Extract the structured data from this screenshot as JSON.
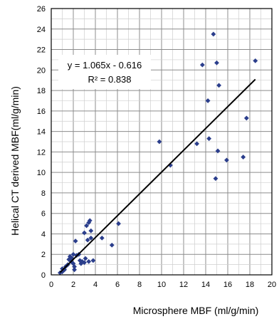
{
  "chart_data": {
    "type": "scatter",
    "title": "",
    "xlabel": "Microsphere MBF (ml/g/min)",
    "ylabel": "Helical CT derived MBF(ml/g/min)",
    "xlim": [
      0,
      20
    ],
    "ylim": [
      0,
      26
    ],
    "x_ticks": [
      "0",
      "2",
      "4",
      "6",
      "8",
      "10",
      "12",
      "14",
      "16",
      "18",
      "20"
    ],
    "y_ticks": [
      "0",
      "2",
      "4",
      "6",
      "8",
      "10",
      "12",
      "14",
      "16",
      "18",
      "20",
      "22",
      "24",
      "26"
    ],
    "grid": true,
    "marker_color": "#2b3e8c",
    "trendline": {
      "slope": 1.065,
      "intercept": -0.616,
      "x_start": 0.8,
      "x_end": 18.5,
      "color": "#000000"
    },
    "annotation": {
      "equation": "y = 1.065x - 0.616",
      "r_squared": "R² = 0.838"
    },
    "points": [
      {
        "x": 0.8,
        "y": 0.2
      },
      {
        "x": 1.0,
        "y": 0.3
      },
      {
        "x": 1.0,
        "y": 0.6
      },
      {
        "x": 1.2,
        "y": 0.5
      },
      {
        "x": 1.3,
        "y": 0.8
      },
      {
        "x": 1.5,
        "y": 1.0
      },
      {
        "x": 1.6,
        "y": 1.5
      },
      {
        "x": 1.7,
        "y": 1.8
      },
      {
        "x": 1.8,
        "y": 1.3
      },
      {
        "x": 1.9,
        "y": 1.6
      },
      {
        "x": 2.0,
        "y": 2.0
      },
      {
        "x": 2.0,
        "y": 1.1
      },
      {
        "x": 2.1,
        "y": 0.5
      },
      {
        "x": 2.1,
        "y": 0.8
      },
      {
        "x": 2.2,
        "y": 3.3
      },
      {
        "x": 2.3,
        "y": 1.9
      },
      {
        "x": 2.5,
        "y": 2.0
      },
      {
        "x": 2.6,
        "y": 1.4
      },
      {
        "x": 2.7,
        "y": 1.1
      },
      {
        "x": 2.8,
        "y": 1.3
      },
      {
        "x": 3.0,
        "y": 4.1
      },
      {
        "x": 3.0,
        "y": 1.2
      },
      {
        "x": 3.1,
        "y": 1.6
      },
      {
        "x": 3.2,
        "y": 4.8
      },
      {
        "x": 3.3,
        "y": 3.4
      },
      {
        "x": 3.4,
        "y": 1.3
      },
      {
        "x": 3.4,
        "y": 5.1
      },
      {
        "x": 3.5,
        "y": 5.3
      },
      {
        "x": 3.6,
        "y": 4.3
      },
      {
        "x": 3.6,
        "y": 3.6
      },
      {
        "x": 3.8,
        "y": 1.4
      },
      {
        "x": 4.6,
        "y": 3.6
      },
      {
        "x": 5.5,
        "y": 2.9
      },
      {
        "x": 6.1,
        "y": 5.0
      },
      {
        "x": 9.8,
        "y": 13.0
      },
      {
        "x": 10.8,
        "y": 10.7
      },
      {
        "x": 13.2,
        "y": 12.8
      },
      {
        "x": 13.7,
        "y": 20.5
      },
      {
        "x": 14.2,
        "y": 17.0
      },
      {
        "x": 14.3,
        "y": 13.3
      },
      {
        "x": 14.7,
        "y": 23.5
      },
      {
        "x": 14.9,
        "y": 9.4
      },
      {
        "x": 15.0,
        "y": 20.7
      },
      {
        "x": 15.1,
        "y": 12.1
      },
      {
        "x": 15.2,
        "y": 18.5
      },
      {
        "x": 15.9,
        "y": 11.2
      },
      {
        "x": 17.4,
        "y": 11.5
      },
      {
        "x": 17.7,
        "y": 15.3
      },
      {
        "x": 18.5,
        "y": 20.9
      }
    ]
  }
}
